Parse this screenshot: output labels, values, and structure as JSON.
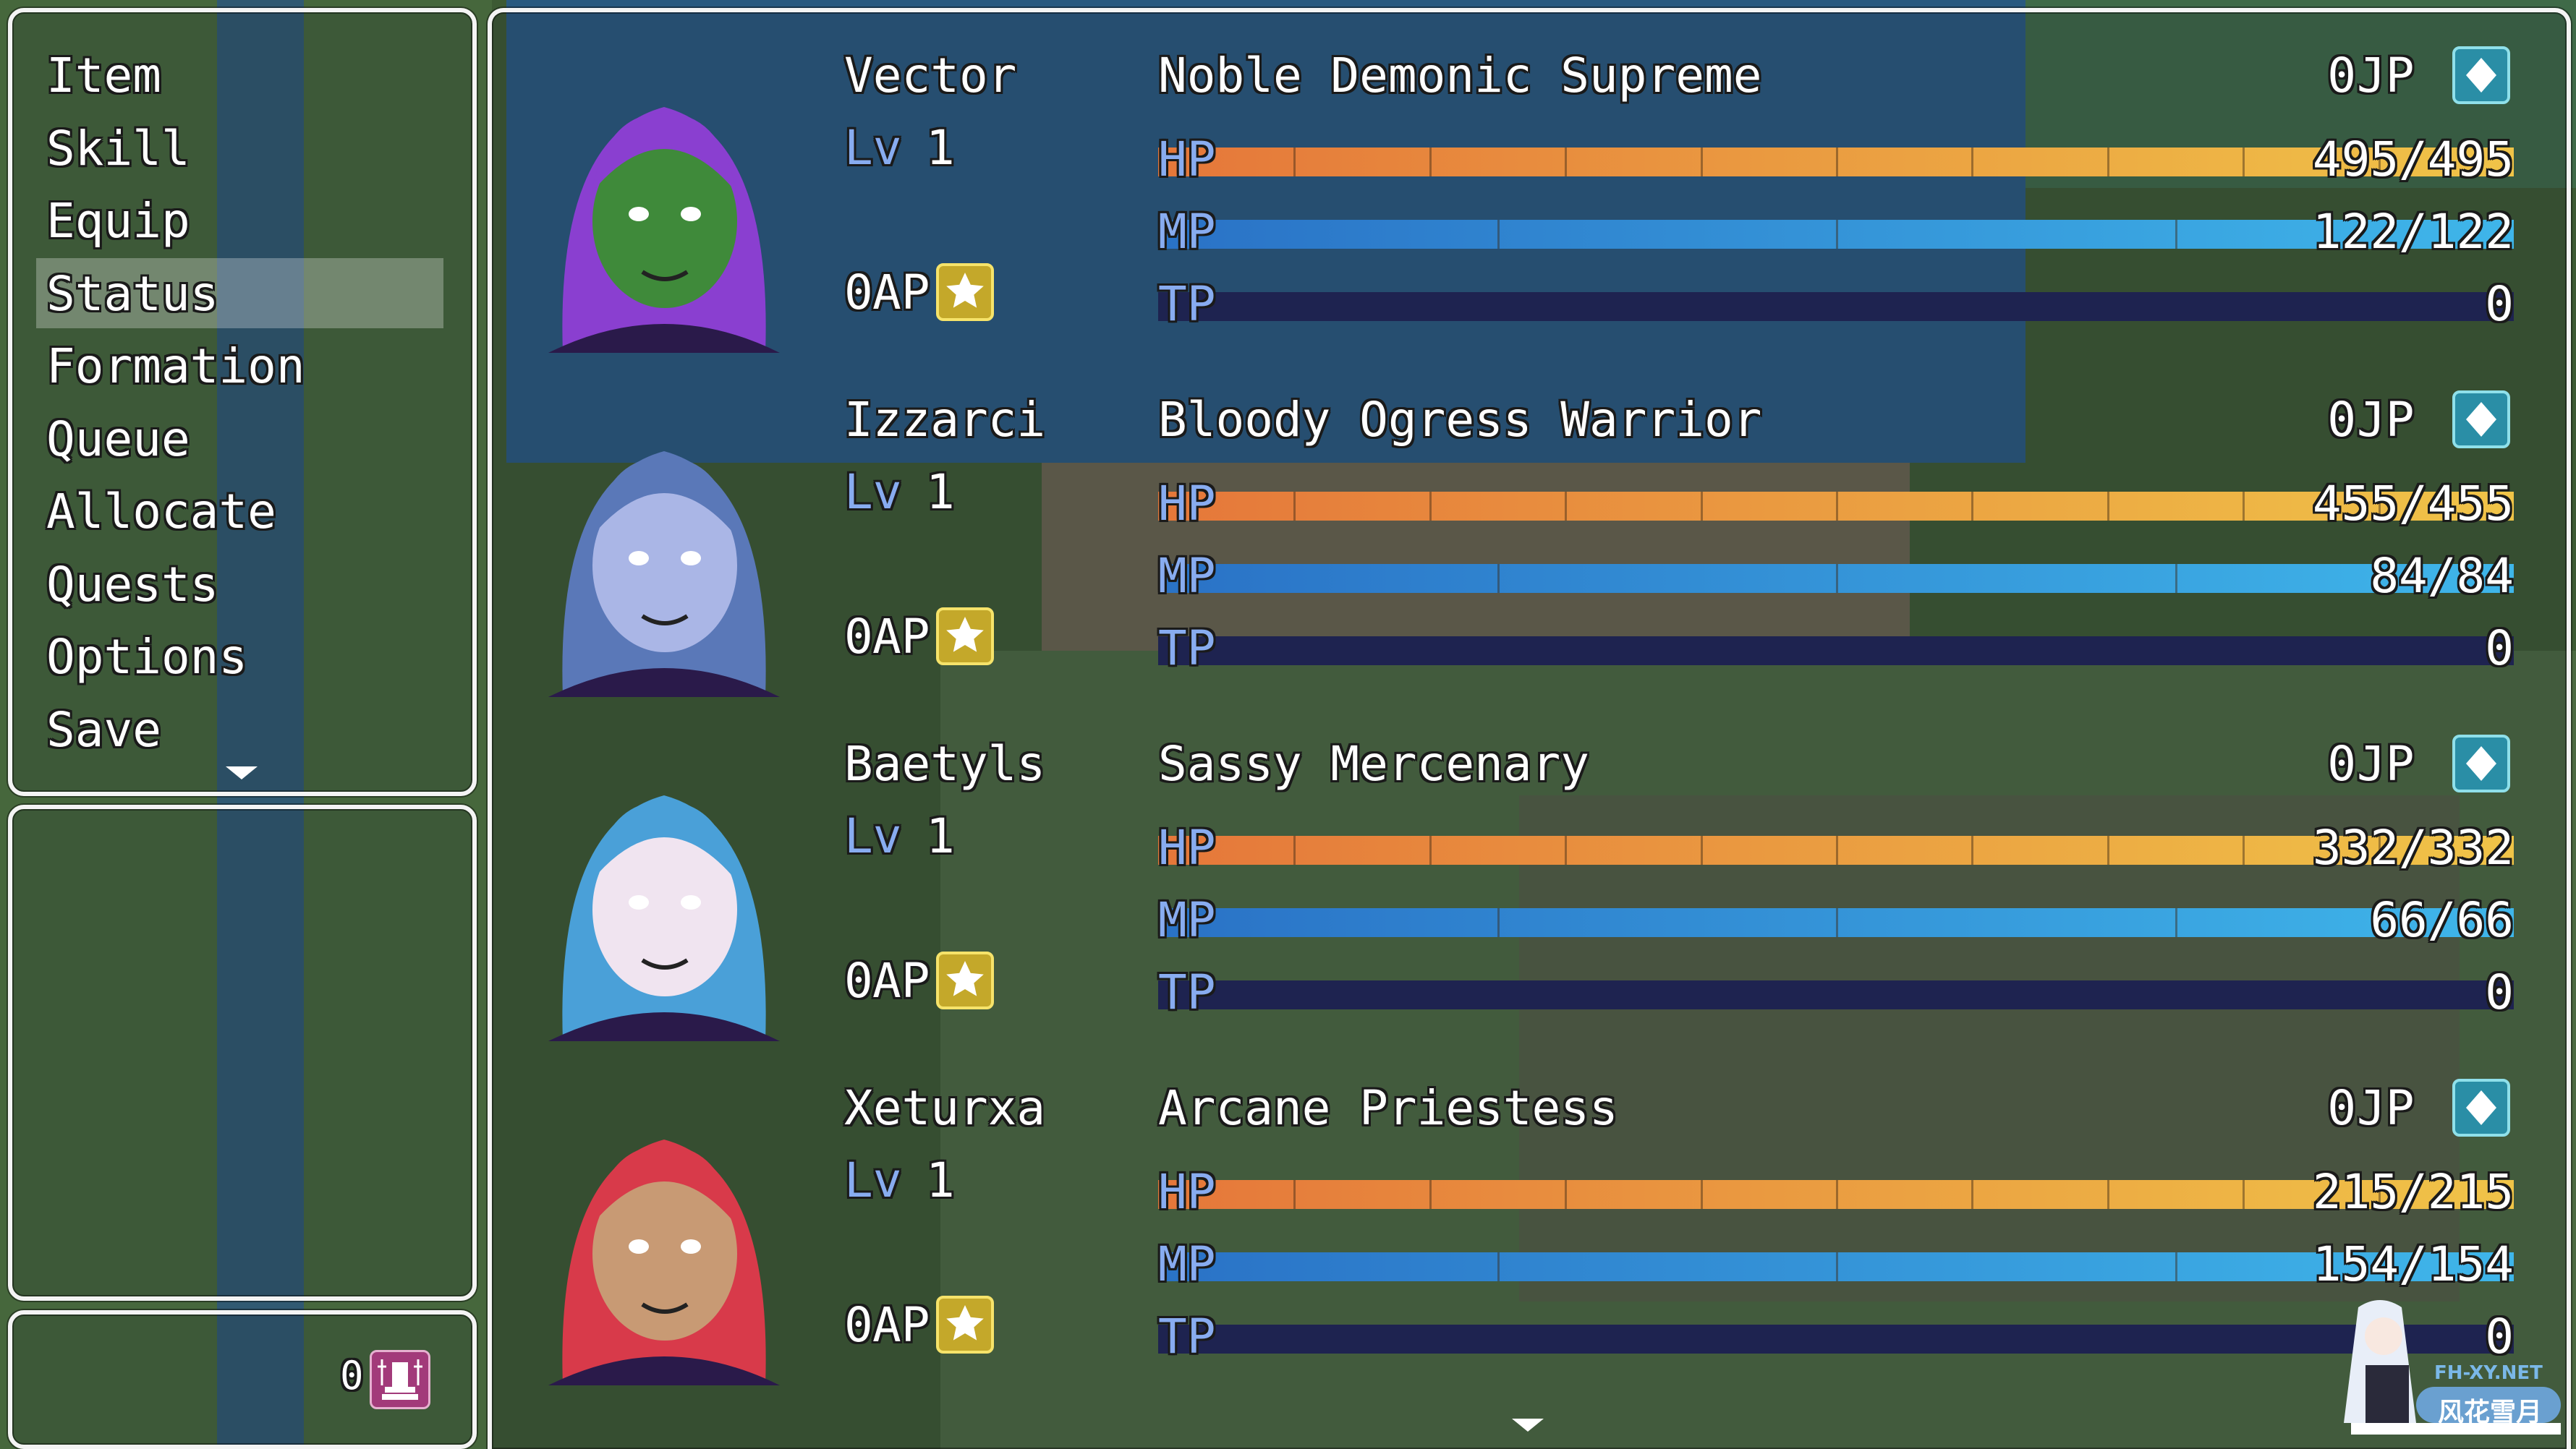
{
  "menu": {
    "items": [
      {
        "label": "Item"
      },
      {
        "label": "Skill"
      },
      {
        "label": "Equip"
      },
      {
        "label": "Status",
        "selected": true
      },
      {
        "label": "Formation"
      },
      {
        "label": "Queue"
      },
      {
        "label": "Allocate"
      },
      {
        "label": "Quests"
      },
      {
        "label": "Options"
      },
      {
        "label": "Save"
      }
    ],
    "more_icon": "arrow-down-icon"
  },
  "currency": {
    "value": "0",
    "icon": "throne-icon",
    "icon_color": "#a23a7a"
  },
  "labels": {
    "lv": "Lv",
    "hp": "HP",
    "mp": "MP",
    "tp": "TP",
    "ap": "AP",
    "jp": "JP"
  },
  "colors": {
    "hp_start": "#e5773a",
    "hp_end": "#f0c448",
    "mp_start": "#2a72c6",
    "mp_end": "#3fb6ea",
    "tp_bg": "#1e2350",
    "system": "#88acf0"
  },
  "party": [
    {
      "name": "Vector",
      "class": "Noble Demonic Supreme",
      "level": "1",
      "ap": "0",
      "jp": "0",
      "hp": "495/495",
      "mp": "122/122",
      "tp": "0",
      "hp_fraction": 1,
      "mp_fraction": 1,
      "tp_fraction": 0,
      "hair": "#8a3fd0",
      "skin": "#3f8a3a"
    },
    {
      "name": "Izzarci",
      "class": "Bloody Ogress Warrior",
      "level": "1",
      "ap": "0",
      "jp": "0",
      "hp": "455/455",
      "mp": "84/84",
      "tp": "0",
      "hp_fraction": 1,
      "mp_fraction": 1,
      "tp_fraction": 0,
      "hair": "#5a78b8",
      "skin": "#aab6e6"
    },
    {
      "name": "Baetyls",
      "class": "Sassy Mercenary",
      "level": "1",
      "ap": "0",
      "jp": "0",
      "hp": "332/332",
      "mp": "66/66",
      "tp": "0",
      "hp_fraction": 1,
      "mp_fraction": 1,
      "tp_fraction": 0,
      "hair": "#4aa0d8",
      "skin": "#f0e4f0"
    },
    {
      "name": "Xeturxa",
      "class": "Arcane Priestess",
      "level": "1",
      "ap": "0",
      "jp": "0",
      "hp": "215/215",
      "mp": "154/154",
      "tp": "0",
      "hp_fraction": 1,
      "mp_fraction": 1,
      "tp_fraction": 0,
      "hair": "#d83a4a",
      "skin": "#c89a74"
    }
  ],
  "watermark": {
    "text": "FH-XY.NET",
    "subtitle": "风花雪月"
  }
}
